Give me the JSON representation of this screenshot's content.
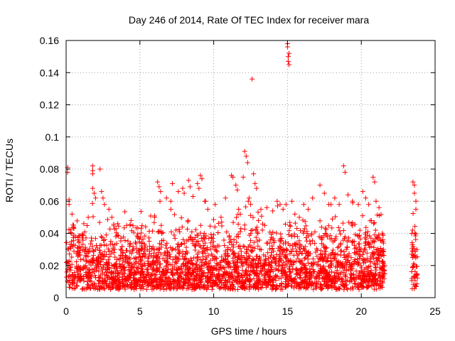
{
  "chart_data": {
    "type": "scatter",
    "title": "Day 246 of 2014, Rate Of TEC Index for receiver mara",
    "xlabel": "GPS time / hours",
    "ylabel": "ROTI / TECUs",
    "xlim": [
      0,
      25
    ],
    "ylim": [
      0,
      0.16
    ],
    "x_ticks": [
      0,
      5,
      10,
      15,
      20,
      25
    ],
    "y_ticks": [
      0,
      0.02,
      0.04,
      0.06,
      0.08,
      0.1,
      0.12,
      0.14,
      0.16
    ],
    "x_tick_labels": [
      "0",
      "5",
      "10",
      "15",
      "20",
      "25"
    ],
    "y_tick_labels": [
      "0",
      "0.02",
      "0.04",
      "0.06",
      "0.08",
      "0.1",
      "0.12",
      "0.14",
      "0.16"
    ],
    "grid": true,
    "marker": "+",
    "color": "#ff0000",
    "series": [
      {
        "name": "ROTI",
        "bulk_density": {
          "segments": [
            [
              0.0,
              21.6
            ],
            [
              23.4,
              23.8
            ]
          ],
          "typical_range": [
            0.005,
            0.035
          ],
          "note": "dense cloud of thousands of points; representative outliers listed below"
        },
        "points": [
          [
            0.1,
            0.081
          ],
          [
            0.1,
            0.078
          ],
          [
            0.2,
            0.061
          ],
          [
            0.2,
            0.058
          ],
          [
            0.4,
            0.052
          ],
          [
            0.5,
            0.044
          ],
          [
            1.2,
            0.046
          ],
          [
            1.5,
            0.05
          ],
          [
            1.8,
            0.082
          ],
          [
            1.8,
            0.079
          ],
          [
            1.8,
            0.077
          ],
          [
            1.8,
            0.068
          ],
          [
            1.9,
            0.065
          ],
          [
            2.0,
            0.062
          ],
          [
            2.3,
            0.08
          ],
          [
            2.4,
            0.066
          ],
          [
            2.5,
            0.062
          ],
          [
            2.6,
            0.058
          ],
          [
            2.9,
            0.055
          ],
          [
            3.1,
            0.05
          ],
          [
            3.5,
            0.046
          ],
          [
            4.1,
            0.045
          ],
          [
            4.4,
            0.048
          ],
          [
            5.1,
            0.03
          ],
          [
            6.0,
            0.05
          ],
          [
            6.2,
            0.072
          ],
          [
            6.3,
            0.069
          ],
          [
            6.4,
            0.066
          ],
          [
            6.8,
            0.062
          ],
          [
            7.1,
            0.055
          ],
          [
            7.2,
            0.071
          ],
          [
            7.6,
            0.066
          ],
          [
            7.9,
            0.068
          ],
          [
            8.0,
            0.065
          ],
          [
            8.3,
            0.073
          ],
          [
            8.4,
            0.069
          ],
          [
            8.6,
            0.063
          ],
          [
            8.9,
            0.071
          ],
          [
            9.0,
            0.068
          ],
          [
            9.1,
            0.076
          ],
          [
            9.2,
            0.074
          ],
          [
            9.4,
            0.06
          ],
          [
            9.6,
            0.055
          ],
          [
            10.1,
            0.058
          ],
          [
            10.5,
            0.05
          ],
          [
            10.8,
            0.062
          ],
          [
            11.2,
            0.076
          ],
          [
            11.3,
            0.075
          ],
          [
            11.5,
            0.07
          ],
          [
            11.6,
            0.067
          ],
          [
            11.8,
            0.052
          ],
          [
            12.0,
            0.075
          ],
          [
            12.1,
            0.091
          ],
          [
            12.2,
            0.088
          ],
          [
            12.3,
            0.084
          ],
          [
            12.4,
            0.062
          ],
          [
            12.5,
            0.058
          ],
          [
            12.6,
            0.136
          ],
          [
            12.7,
            0.077
          ],
          [
            12.8,
            0.071
          ],
          [
            12.9,
            0.068
          ],
          [
            13.2,
            0.055
          ],
          [
            13.6,
            0.056
          ],
          [
            14.0,
            0.054
          ],
          [
            14.3,
            0.06
          ],
          [
            14.5,
            0.058
          ],
          [
            14.7,
            0.055
          ],
          [
            14.9,
            0.058
          ],
          [
            15.0,
            0.158
          ],
          [
            15.0,
            0.156
          ],
          [
            15.05,
            0.15
          ],
          [
            15.05,
            0.147
          ],
          [
            15.1,
            0.145
          ],
          [
            15.1,
            0.152
          ],
          [
            15.3,
            0.06
          ],
          [
            15.5,
            0.052
          ],
          [
            15.8,
            0.05
          ],
          [
            16.1,
            0.058
          ],
          [
            16.4,
            0.055
          ],
          [
            16.7,
            0.062
          ],
          [
            17.2,
            0.07
          ],
          [
            17.5,
            0.065
          ],
          [
            17.8,
            0.058
          ],
          [
            18.2,
            0.062
          ],
          [
            18.5,
            0.058
          ],
          [
            18.8,
            0.082
          ],
          [
            18.9,
            0.078
          ],
          [
            19.1,
            0.064
          ],
          [
            19.4,
            0.06
          ],
          [
            19.8,
            0.058
          ],
          [
            20.1,
            0.066
          ],
          [
            20.3,
            0.062
          ],
          [
            20.5,
            0.058
          ],
          [
            20.8,
            0.075
          ],
          [
            20.9,
            0.072
          ],
          [
            21.0,
            0.06
          ],
          [
            21.2,
            0.056
          ],
          [
            21.5,
            0.03
          ],
          [
            23.5,
            0.072
          ],
          [
            23.6,
            0.07
          ],
          [
            23.6,
            0.065
          ],
          [
            23.7,
            0.06
          ],
          [
            23.7,
            0.055
          ]
        ]
      }
    ]
  }
}
